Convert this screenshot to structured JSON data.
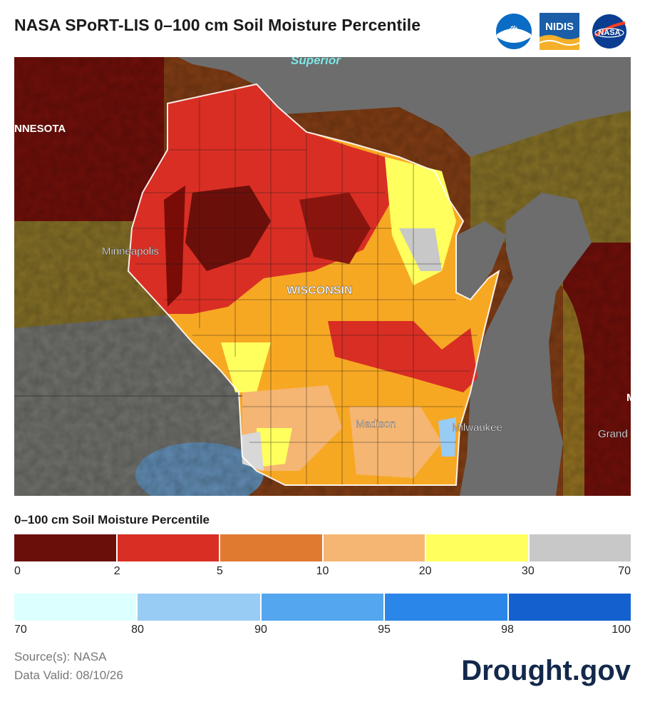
{
  "header": {
    "title": "NASA SPoRT-LIS 0–100 cm Soil Moisture Percentile",
    "logos": [
      {
        "name": "noaa-logo",
        "text": "NOAA",
        "color": "#0a6cc4"
      },
      {
        "name": "nidis-logo",
        "text": "NIDIS",
        "color": "#1a5ea8"
      },
      {
        "name": "nasa-logo",
        "text": "NASA",
        "color": "#0b3d91"
      }
    ]
  },
  "map": {
    "labels": {
      "superior": "Superior",
      "minnesota": "NNESOTA",
      "minneapolis": "Minneapolis",
      "wisconsin": "WISCONSIN",
      "madison": "Madison",
      "milwaukee": "Milwaukee",
      "grand": "Grand",
      "edge_m": "M"
    }
  },
  "legend": {
    "title": "0–100 cm Soil Moisture Percentile",
    "dry": {
      "colors": [
        "#6b0f0a",
        "#d92e24",
        "#e07a30",
        "#f5b673",
        "#ffff5e",
        "#c8c8c8"
      ],
      "ticks": [
        "0",
        "2",
        "5",
        "10",
        "20",
        "30",
        "70"
      ]
    },
    "wet": {
      "colors": [
        "#dcffff",
        "#99ccf5",
        "#54a6ee",
        "#2a86e8",
        "#1460cf"
      ],
      "ticks": [
        "70",
        "80",
        "90",
        "95",
        "98",
        "100"
      ]
    }
  },
  "footer": {
    "source": "Source(s): NASA",
    "valid": "Data Valid: 08/10/26",
    "brand": "Drought.gov"
  }
}
